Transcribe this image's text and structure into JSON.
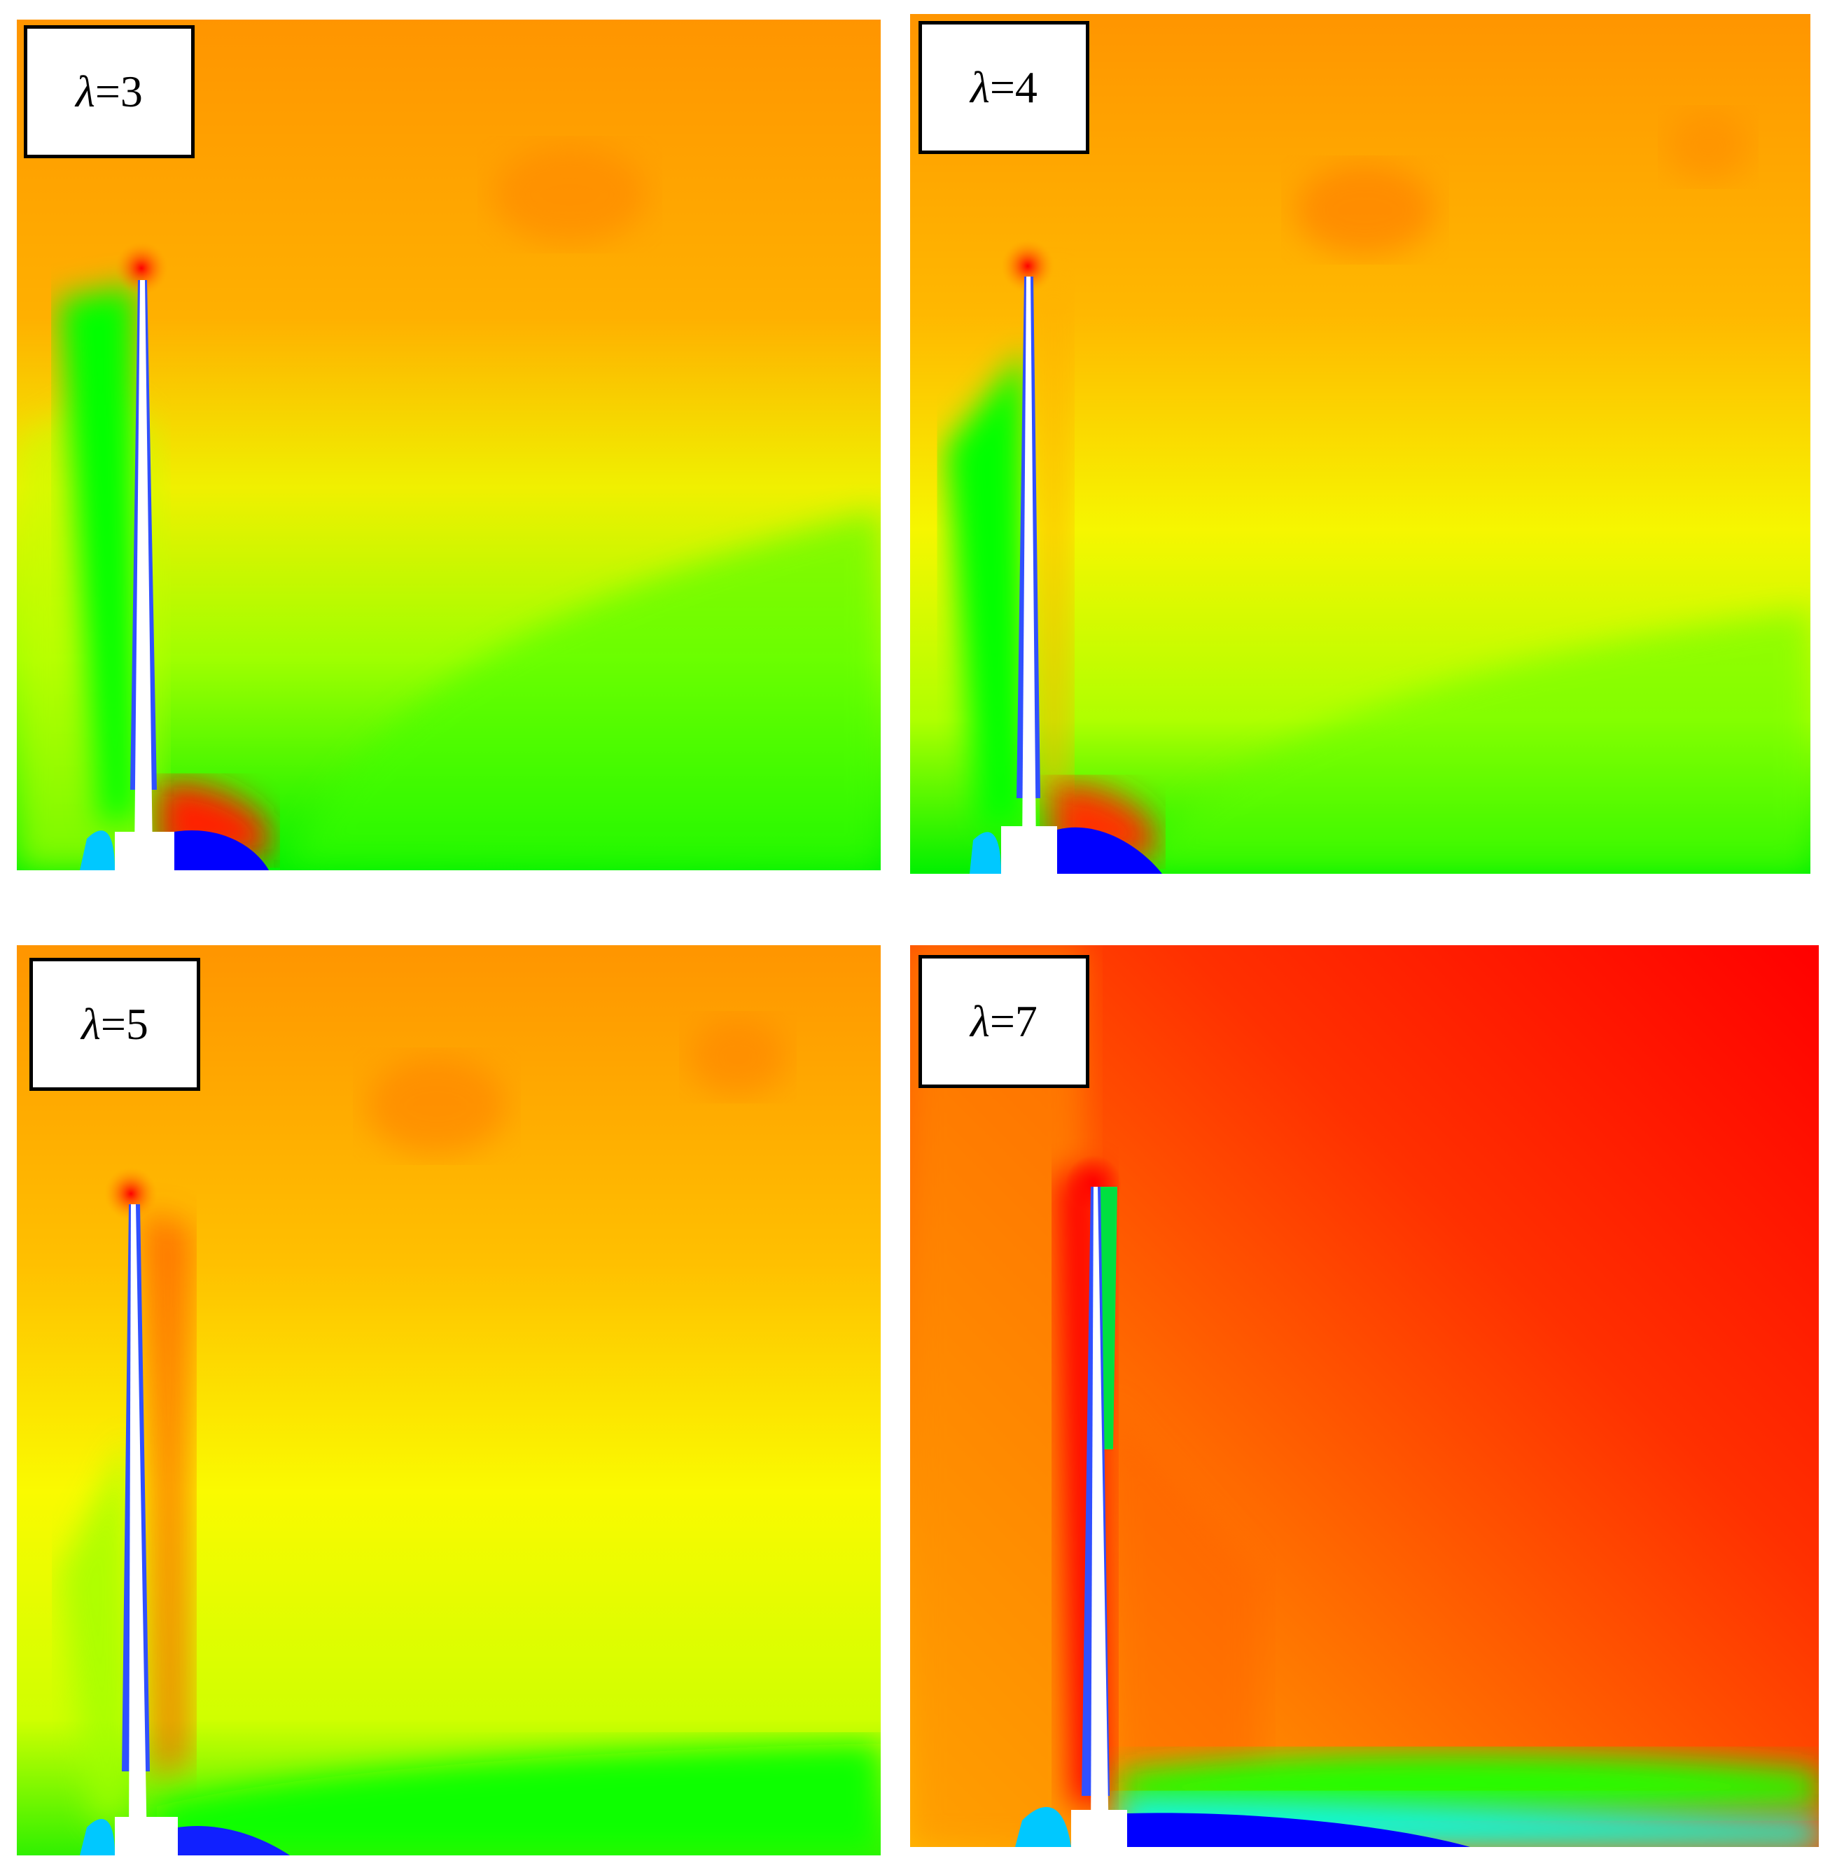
{
  "panels": [
    {
      "label": "λ=3",
      "symbol": "λ",
      "suffix": "=3"
    },
    {
      "label": "λ=4",
      "symbol": "λ",
      "suffix": "=4"
    },
    {
      "label": "λ=5",
      "symbol": "λ",
      "suffix": "=5"
    },
    {
      "label": "λ=7",
      "symbol": "λ",
      "suffix": "=7"
    }
  ],
  "colormap": {
    "red": "#ff0000",
    "orange_red": "#ff5a00",
    "orange": "#ff9a00",
    "yellow_orange": "#ffc800",
    "yellow": "#ffff00",
    "yellow_green": "#c8ff00",
    "green": "#00ff00",
    "cyan": "#00ffff",
    "blue": "#0000ff",
    "white": "#ffffff"
  }
}
